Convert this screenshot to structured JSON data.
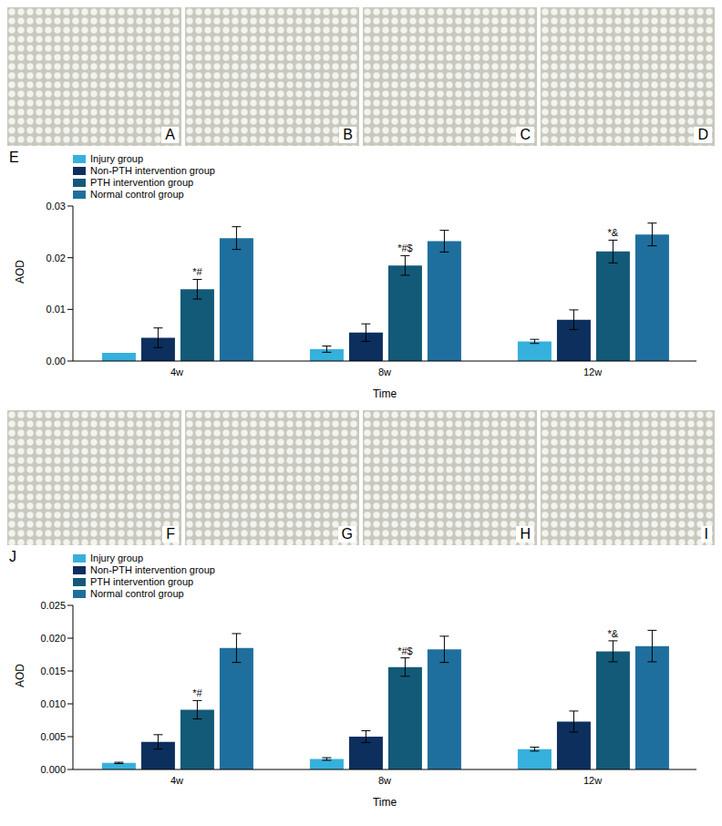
{
  "image_panels": [
    [
      "A",
      "B",
      "C",
      "D"
    ],
    [
      "F",
      "G",
      "H",
      "I"
    ]
  ],
  "chart_data": [
    {
      "type": "bar",
      "title": "E",
      "x_label": "Time",
      "y_label": "AOD",
      "categories": [
        "4w",
        "8w",
        "12w"
      ],
      "ylim": [
        0,
        0.03
      ],
      "yticks": [
        {
          "value": 0,
          "label": "0.00"
        },
        0.01,
        0.02,
        0.03
      ],
      "grid": false,
      "legend": "upper left",
      "series": [
        {
          "name": "Injury group",
          "color": "#36b0dc",
          "values": [
            0.0016,
            0.0023,
            0.0038
          ],
          "errors": [
            0,
            0.0006,
            0.0004
          ]
        },
        {
          "name": "Non-PTH intervention group",
          "color": "#0d2f5e",
          "values": [
            0.0045,
            0.0055,
            0.008
          ],
          "errors": [
            0.0019,
            0.0017,
            0.0019
          ]
        },
        {
          "name": "PTH intervention group",
          "color": "#135a78",
          "values": [
            0.0139,
            0.0185,
            0.0212
          ],
          "errors": [
            0.0019,
            0.0019,
            0.0022
          ],
          "annotations": [
            "*#",
            "*#$",
            "*&"
          ]
        },
        {
          "name": "Normal control group",
          "color": "#1f6f9e",
          "values": [
            0.0238,
            0.0232,
            0.0245
          ],
          "errors": [
            0.0022,
            0.0021,
            0.0022
          ]
        }
      ]
    },
    {
      "type": "bar",
      "title": "J",
      "x_label": "Time",
      "y_label": "AOD",
      "categories": [
        "4w",
        "8w",
        "12w"
      ],
      "ylim": [
        0,
        0.025
      ],
      "yticks": [
        {
          "value": 0,
          "label": "0.000"
        },
        0.005,
        {
          "value": 0.01,
          "label": "0.010"
        },
        0.015,
        {
          "value": 0.02,
          "label": "0.020"
        },
        0.025
      ],
      "grid": false,
      "legend": "upper left",
      "series": [
        {
          "name": "Injury group",
          "color": "#36b0dc",
          "values": [
            0.001,
            0.0016,
            0.0031
          ],
          "errors": [
            0.0001,
            0.0002,
            0.0003
          ]
        },
        {
          "name": "Non-PTH intervention group",
          "color": "#0d2f5e",
          "values": [
            0.0042,
            0.005,
            0.0073
          ],
          "errors": [
            0.0011,
            0.0009,
            0.0016
          ]
        },
        {
          "name": "PTH intervention group",
          "color": "#135a78",
          "values": [
            0.0091,
            0.0156,
            0.018
          ],
          "errors": [
            0.0014,
            0.0014,
            0.0016
          ],
          "annotations": [
            "*#",
            "*#$",
            "*&"
          ]
        },
        {
          "name": "Normal control group",
          "color": "#1f6f9e",
          "values": [
            0.0185,
            0.0183,
            0.0188
          ],
          "errors": [
            0.0022,
            0.002,
            0.0024
          ]
        }
      ]
    }
  ]
}
